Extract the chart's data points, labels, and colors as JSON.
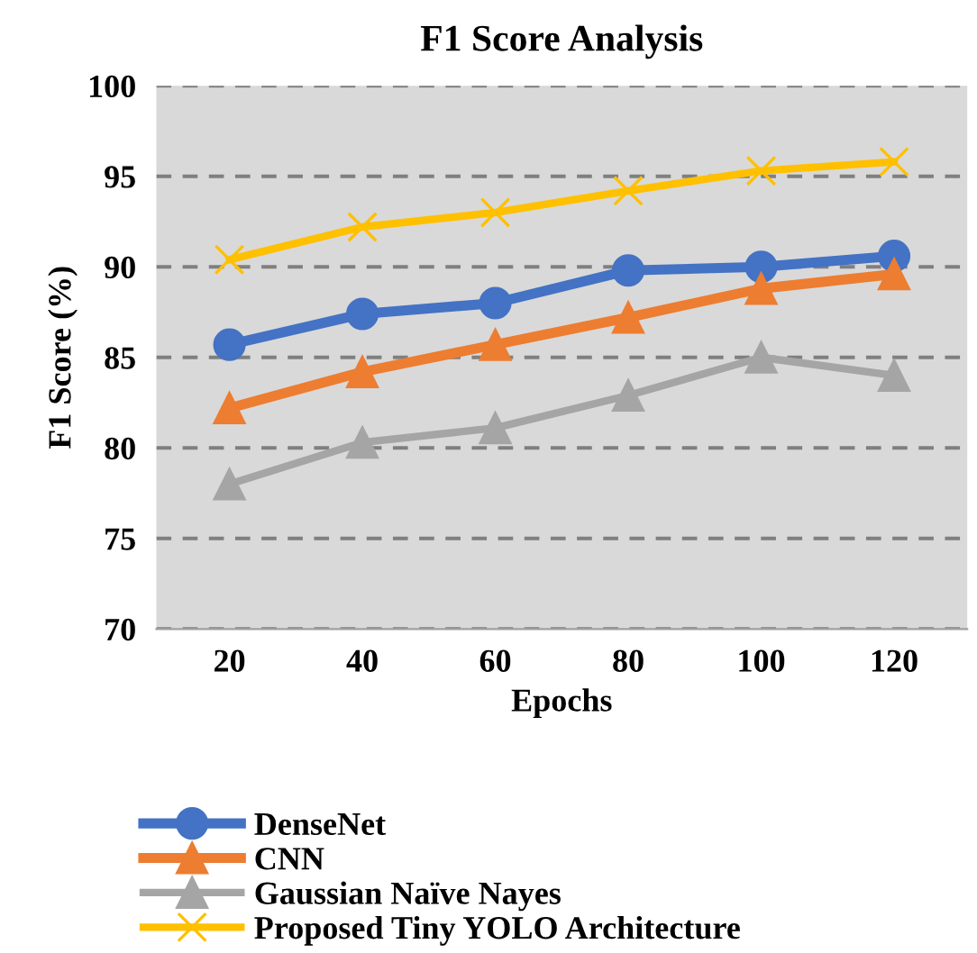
{
  "chart_data": {
    "type": "line",
    "title": "F1 Score Analysis",
    "xlabel": "Epochs",
    "ylabel": "F1 Score (%)",
    "categories": [
      "20",
      "40",
      "60",
      "80",
      "100",
      "120"
    ],
    "series": [
      {
        "name": "DenseNet",
        "color": "#4472c4",
        "marker": "circle",
        "values": [
          85.7,
          87.4,
          88.0,
          89.8,
          90.0,
          90.6
        ]
      },
      {
        "name": "CNN",
        "color": "#ed7d31",
        "marker": "triangle",
        "values": [
          82.2,
          84.2,
          85.7,
          87.2,
          88.8,
          89.6
        ]
      },
      {
        "name": "Gaussian Naïve Nayes",
        "color": "#a5a5a5",
        "marker": "triangle",
        "values": [
          78.0,
          80.3,
          81.1,
          82.9,
          85.0,
          84.0
        ]
      },
      {
        "name": "Proposed Tiny YOLO Architecture",
        "color": "#ffc000",
        "marker": "cross",
        "values": [
          90.4,
          92.2,
          93.0,
          94.2,
          95.3,
          95.8
        ]
      }
    ],
    "ylim": [
      70,
      100
    ],
    "yticks": [
      70,
      75,
      80,
      85,
      90,
      95,
      100
    ],
    "grid": "y",
    "legend": "bottom",
    "line_style": "solid"
  }
}
